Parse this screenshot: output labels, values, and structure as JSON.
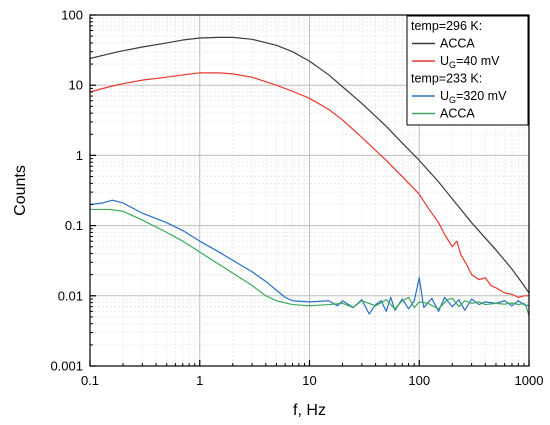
{
  "chart_data": {
    "type": "line",
    "title": "",
    "xlabel": "f, Hz",
    "ylabel": "Counts",
    "xscale": "log",
    "yscale": "log",
    "xlim": [
      0.1,
      1000
    ],
    "ylim": [
      0.001,
      100
    ],
    "x_ticks": [
      "0.1",
      "1",
      "10",
      "100",
      "1000"
    ],
    "y_ticks": [
      "0.001",
      "0.01",
      "0.1",
      "1",
      "10",
      "100"
    ],
    "grid": true,
    "legend_placement": "top-right",
    "legend": [
      {
        "kind": "header",
        "text": "temp=296 K:"
      },
      {
        "kind": "entry",
        "series": 0,
        "parts": [
          {
            "t": "ACCA"
          }
        ]
      },
      {
        "kind": "entry",
        "series": 1,
        "parts": [
          {
            "t": "U"
          },
          {
            "t": "G",
            "sub": true
          },
          {
            "t": "=40 mV"
          }
        ]
      },
      {
        "kind": "header",
        "text": "temp=233 K:"
      },
      {
        "kind": "entry",
        "series": 2,
        "parts": [
          {
            "t": "U"
          },
          {
            "t": "G",
            "sub": true
          },
          {
            "t": "=320 mV"
          }
        ]
      },
      {
        "kind": "entry",
        "series": 3,
        "parts": [
          {
            "t": "ACCA"
          }
        ]
      }
    ],
    "series": [
      {
        "color": "#3c3c3c",
        "points": [
          [
            0.1,
            24
          ],
          [
            0.15,
            28
          ],
          [
            0.2,
            31
          ],
          [
            0.3,
            35
          ],
          [
            0.5,
            40
          ],
          [
            0.7,
            44
          ],
          [
            1,
            47
          ],
          [
            1.5,
            48
          ],
          [
            2,
            48
          ],
          [
            3,
            45
          ],
          [
            5,
            37
          ],
          [
            7,
            30
          ],
          [
            10,
            22
          ],
          [
            15,
            14
          ],
          [
            20,
            9.5
          ],
          [
            30,
            5.5
          ],
          [
            50,
            2.6
          ],
          [
            70,
            1.5
          ],
          [
            100,
            0.85
          ],
          [
            150,
            0.42
          ],
          [
            200,
            0.24
          ],
          [
            300,
            0.11
          ],
          [
            500,
            0.045
          ],
          [
            700,
            0.024
          ],
          [
            900,
            0.014
          ],
          [
            1000,
            0.011
          ]
        ]
      },
      {
        "color": "#e8392f",
        "points": [
          [
            0.1,
            8
          ],
          [
            0.15,
            9.5
          ],
          [
            0.2,
            10.5
          ],
          [
            0.3,
            11.8
          ],
          [
            0.5,
            13
          ],
          [
            0.7,
            14
          ],
          [
            1,
            15
          ],
          [
            1.5,
            15
          ],
          [
            2,
            14.5
          ],
          [
            3,
            13
          ],
          [
            5,
            10
          ],
          [
            7,
            8.2
          ],
          [
            10,
            6.5
          ],
          [
            15,
            4.5
          ],
          [
            20,
            3.2
          ],
          [
            30,
            1.8
          ],
          [
            50,
            0.85
          ],
          [
            70,
            0.5
          ],
          [
            100,
            0.28
          ],
          [
            120,
            0.18
          ],
          [
            150,
            0.11
          ],
          [
            170,
            0.075
          ],
          [
            200,
            0.05
          ],
          [
            220,
            0.06
          ],
          [
            240,
            0.038
          ],
          [
            270,
            0.028
          ],
          [
            300,
            0.02
          ],
          [
            350,
            0.017
          ],
          [
            400,
            0.018
          ],
          [
            450,
            0.014
          ],
          [
            500,
            0.013
          ],
          [
            600,
            0.011
          ],
          [
            700,
            0.0105
          ],
          [
            800,
            0.0095
          ],
          [
            900,
            0.01
          ],
          [
            1000,
            0.01
          ]
        ]
      },
      {
        "color": "#2a6fc9",
        "points": [
          [
            0.1,
            0.2
          ],
          [
            0.13,
            0.21
          ],
          [
            0.16,
            0.23
          ],
          [
            0.2,
            0.21
          ],
          [
            0.3,
            0.15
          ],
          [
            0.5,
            0.11
          ],
          [
            0.7,
            0.085
          ],
          [
            1,
            0.06
          ],
          [
            1.5,
            0.042
          ],
          [
            2,
            0.032
          ],
          [
            3,
            0.022
          ],
          [
            4,
            0.016
          ],
          [
            5,
            0.012
          ],
          [
            6,
            0.0095
          ],
          [
            7,
            0.0085
          ],
          [
            10,
            0.0082
          ],
          [
            15,
            0.0085
          ],
          [
            18,
            0.0072
          ],
          [
            20,
            0.0085
          ],
          [
            25,
            0.0068
          ],
          [
            30,
            0.0088
          ],
          [
            35,
            0.0055
          ],
          [
            40,
            0.0075
          ],
          [
            45,
            0.0085
          ],
          [
            50,
            0.006
          ],
          [
            55,
            0.0095
          ],
          [
            60,
            0.0062
          ],
          [
            70,
            0.009
          ],
          [
            80,
            0.0065
          ],
          [
            90,
            0.0085
          ],
          [
            100,
            0.018
          ],
          [
            110,
            0.0068
          ],
          [
            130,
            0.0092
          ],
          [
            150,
            0.006
          ],
          [
            170,
            0.0095
          ],
          [
            200,
            0.007
          ],
          [
            230,
            0.0088
          ],
          [
            260,
            0.0062
          ],
          [
            300,
            0.009
          ],
          [
            350,
            0.0075
          ],
          [
            400,
            0.0082
          ],
          [
            500,
            0.0078
          ],
          [
            600,
            0.0085
          ],
          [
            700,
            0.0072
          ],
          [
            800,
            0.0085
          ],
          [
            900,
            0.0075
          ],
          [
            1000,
            0.0072
          ]
        ]
      },
      {
        "color": "#3aaa5a",
        "points": [
          [
            0.1,
            0.17
          ],
          [
            0.15,
            0.17
          ],
          [
            0.2,
            0.16
          ],
          [
            0.3,
            0.12
          ],
          [
            0.5,
            0.08
          ],
          [
            0.7,
            0.06
          ],
          [
            1,
            0.042
          ],
          [
            1.5,
            0.028
          ],
          [
            2,
            0.021
          ],
          [
            3,
            0.014
          ],
          [
            4,
            0.01
          ],
          [
            5,
            0.0085
          ],
          [
            7,
            0.0075
          ],
          [
            10,
            0.0072
          ],
          [
            15,
            0.0075
          ],
          [
            20,
            0.0078
          ],
          [
            25,
            0.0068
          ],
          [
            30,
            0.0085
          ],
          [
            40,
            0.0072
          ],
          [
            50,
            0.0088
          ],
          [
            60,
            0.0065
          ],
          [
            70,
            0.0085
          ],
          [
            80,
            0.0095
          ],
          [
            90,
            0.0068
          ],
          [
            100,
            0.0082
          ],
          [
            120,
            0.0078
          ],
          [
            150,
            0.0065
          ],
          [
            180,
            0.0088
          ],
          [
            200,
            0.0092
          ],
          [
            230,
            0.007
          ],
          [
            260,
            0.0085
          ],
          [
            300,
            0.0078
          ],
          [
            350,
            0.0082
          ],
          [
            400,
            0.0075
          ],
          [
            500,
            0.0078
          ],
          [
            600,
            0.0076
          ],
          [
            700,
            0.0079
          ],
          [
            800,
            0.0075
          ],
          [
            900,
            0.0078
          ],
          [
            950,
            0.0068
          ],
          [
            1000,
            0.0052
          ]
        ]
      }
    ]
  }
}
